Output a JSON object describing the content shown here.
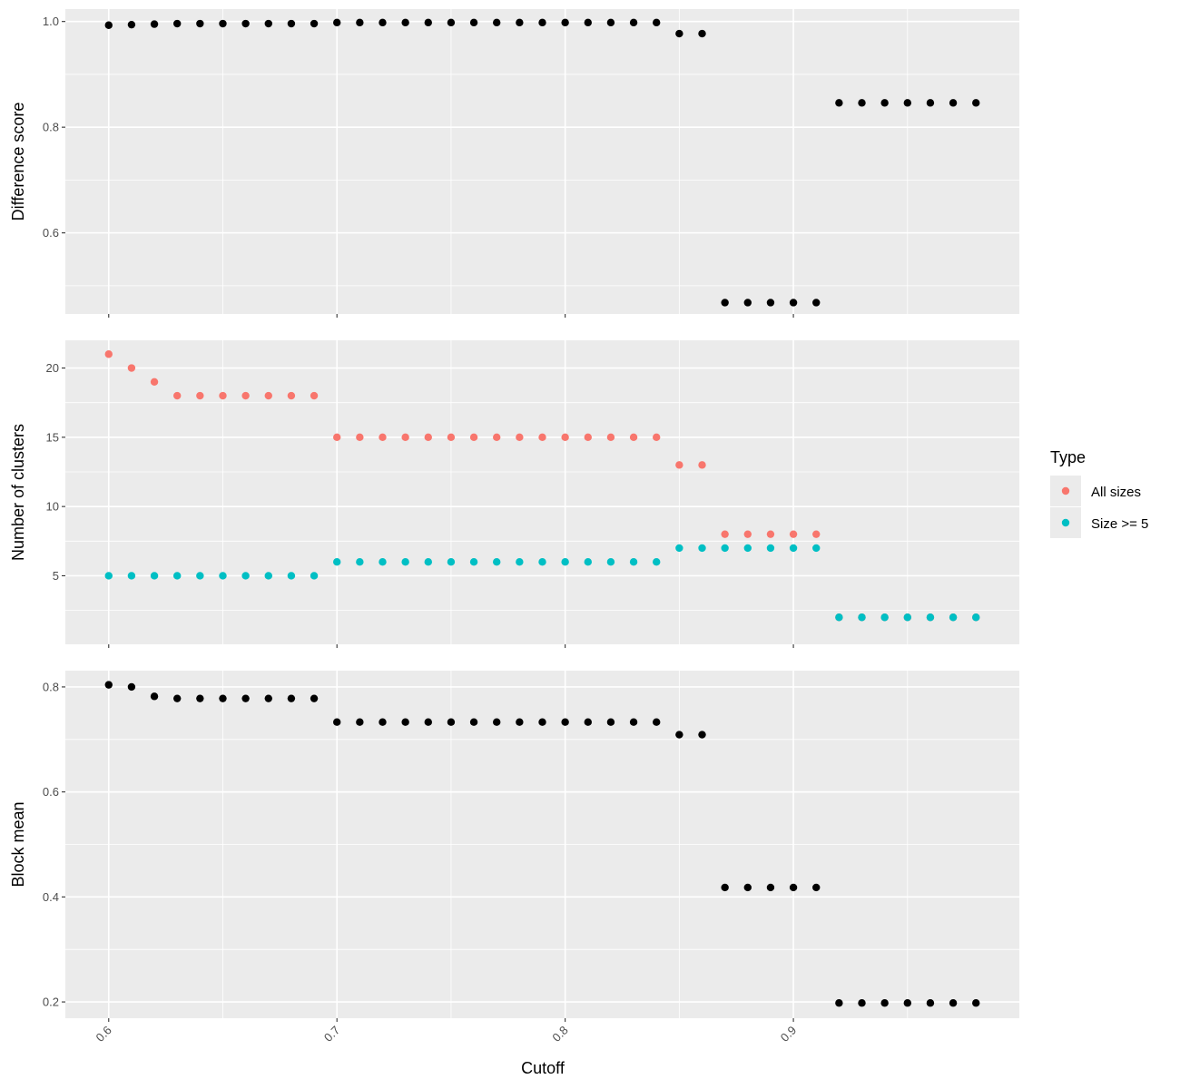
{
  "chart_data": {
    "type": "scatter",
    "xlabel": "Cutoff",
    "xlim": [
      0.581,
      0.999
    ],
    "x_ticks": [
      0.6,
      0.7,
      0.8,
      0.9
    ],
    "x_tick_labels": [
      "0.6",
      "0.7",
      "0.8",
      "0.9"
    ],
    "x": [
      0.6,
      0.61,
      0.62,
      0.63,
      0.64,
      0.65,
      0.66,
      0.67,
      0.68,
      0.69,
      0.7,
      0.71,
      0.72,
      0.73,
      0.74,
      0.75,
      0.76,
      0.77,
      0.78,
      0.79,
      0.8,
      0.81,
      0.82,
      0.83,
      0.84,
      0.85,
      0.86,
      0.87,
      0.88,
      0.89,
      0.9,
      0.91,
      0.92,
      0.93,
      0.94,
      0.95,
      0.96,
      0.97,
      0.98
    ],
    "grid": true,
    "legend": {
      "title": "Type",
      "placement": "right",
      "entries": [
        {
          "label": "All sizes",
          "color": "#F8766D"
        },
        {
          "label": "Size >= 5",
          "color": "#00BFC4"
        }
      ]
    },
    "panels": [
      {
        "ylabel": "Difference score",
        "ylim": [
          0.4465,
          1.0235
        ],
        "y_ticks": [
          0.6,
          0.8,
          1.0
        ],
        "y_tick_labels": [
          "0.6",
          "0.8",
          "1.0"
        ],
        "series": [
          {
            "color": "#000000",
            "values": [
              0.993,
              0.994,
              0.995,
              0.996,
              0.996,
              0.996,
              0.996,
              0.996,
              0.996,
              0.996,
              0.998,
              0.998,
              0.998,
              0.998,
              0.998,
              0.998,
              0.998,
              0.998,
              0.998,
              0.998,
              0.998,
              0.998,
              0.998,
              0.998,
              0.998,
              0.977,
              0.977,
              0.468,
              0.468,
              0.468,
              0.468,
              0.468,
              0.846,
              0.846,
              0.846,
              0.846,
              0.846,
              0.846,
              0.846
            ]
          }
        ]
      },
      {
        "ylabel": "Number of clusters",
        "ylim": [
          0.05,
          22.0
        ],
        "y_ticks": [
          5,
          10,
          15,
          20
        ],
        "y_tick_labels": [
          "5",
          "10",
          "15",
          "20"
        ],
        "series": [
          {
            "name": "All sizes",
            "color": "#F8766D",
            "values": [
              21,
              20,
              19,
              18,
              18,
              18,
              18,
              18,
              18,
              18,
              15,
              15,
              15,
              15,
              15,
              15,
              15,
              15,
              15,
              15,
              15,
              15,
              15,
              15,
              15,
              13,
              13,
              8,
              8,
              8,
              8,
              8,
              2,
              2,
              2,
              2,
              2,
              2,
              2
            ]
          },
          {
            "name": "Size >= 5",
            "color": "#00BFC4",
            "values": [
              5,
              5,
              5,
              5,
              5,
              5,
              5,
              5,
              5,
              5,
              6,
              6,
              6,
              6,
              6,
              6,
              6,
              6,
              6,
              6,
              6,
              6,
              6,
              6,
              6,
              7,
              7,
              7,
              7,
              7,
              7,
              7,
              2,
              2,
              2,
              2,
              2,
              2,
              2
            ]
          }
        ]
      },
      {
        "ylabel": "Block mean",
        "ylim": [
          0.169,
          0.831
        ],
        "y_ticks": [
          0.2,
          0.4,
          0.6,
          0.8
        ],
        "y_tick_labels": [
          "0.2",
          "0.4",
          "0.6",
          "0.8"
        ],
        "series": [
          {
            "color": "#000000",
            "values": [
              0.804,
              0.8,
              0.782,
              0.778,
              0.778,
              0.778,
              0.778,
              0.778,
              0.778,
              0.778,
              0.733,
              0.733,
              0.733,
              0.733,
              0.733,
              0.733,
              0.733,
              0.733,
              0.733,
              0.733,
              0.733,
              0.733,
              0.733,
              0.733,
              0.733,
              0.709,
              0.709,
              0.418,
              0.418,
              0.418,
              0.418,
              0.418,
              0.198,
              0.198,
              0.198,
              0.198,
              0.198,
              0.198,
              0.198
            ]
          }
        ]
      }
    ]
  }
}
